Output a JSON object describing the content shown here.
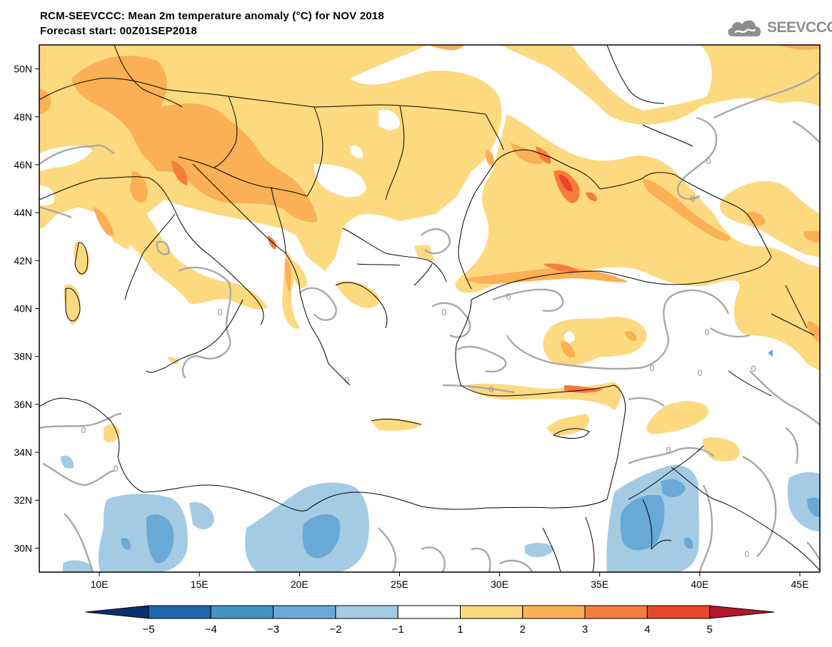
{
  "header": {
    "title": "RCM-SEEVCCC: Mean 2m temperature anomaly (°C) for NOV 2018",
    "subtitle": "Forecast start: 00Z01SEP2018"
  },
  "logo": {
    "text": "SEEVCCC",
    "icon": "cloud-icon"
  },
  "map": {
    "lat_range": [
      29,
      51
    ],
    "lon_range": [
      7,
      46
    ],
    "lat_ticks": [
      "50N",
      "48N",
      "46N",
      "44N",
      "42N",
      "40N",
      "38N",
      "36N",
      "34N",
      "32N",
      "30N"
    ],
    "lon_ticks": [
      "10E",
      "15E",
      "20E",
      "25E",
      "30E",
      "35E",
      "40E",
      "45E"
    ],
    "contour_label": "0",
    "colors": {
      "land_outline": "#000000",
      "zero_contour": "#a8a8a8",
      "warm_1": "#fdd97f",
      "warm_2": "#fbb055",
      "warm_3": "#f67c3c",
      "warm_4": "#e8462a",
      "cool_1": "#a3cbe4",
      "cool_2": "#6aa8d6"
    }
  },
  "colorbar": {
    "labels": [
      "−5",
      "−4",
      "−3",
      "−2",
      "−1",
      "1",
      "2",
      "3",
      "4",
      "5"
    ],
    "colors": [
      "#08306b",
      "#2166ac",
      "#4393c3",
      "#6aa8d6",
      "#a3cbe4",
      "#ffffff",
      "#fdd97f",
      "#fbb055",
      "#f67c3c",
      "#e8462a",
      "#b2182b"
    ]
  }
}
